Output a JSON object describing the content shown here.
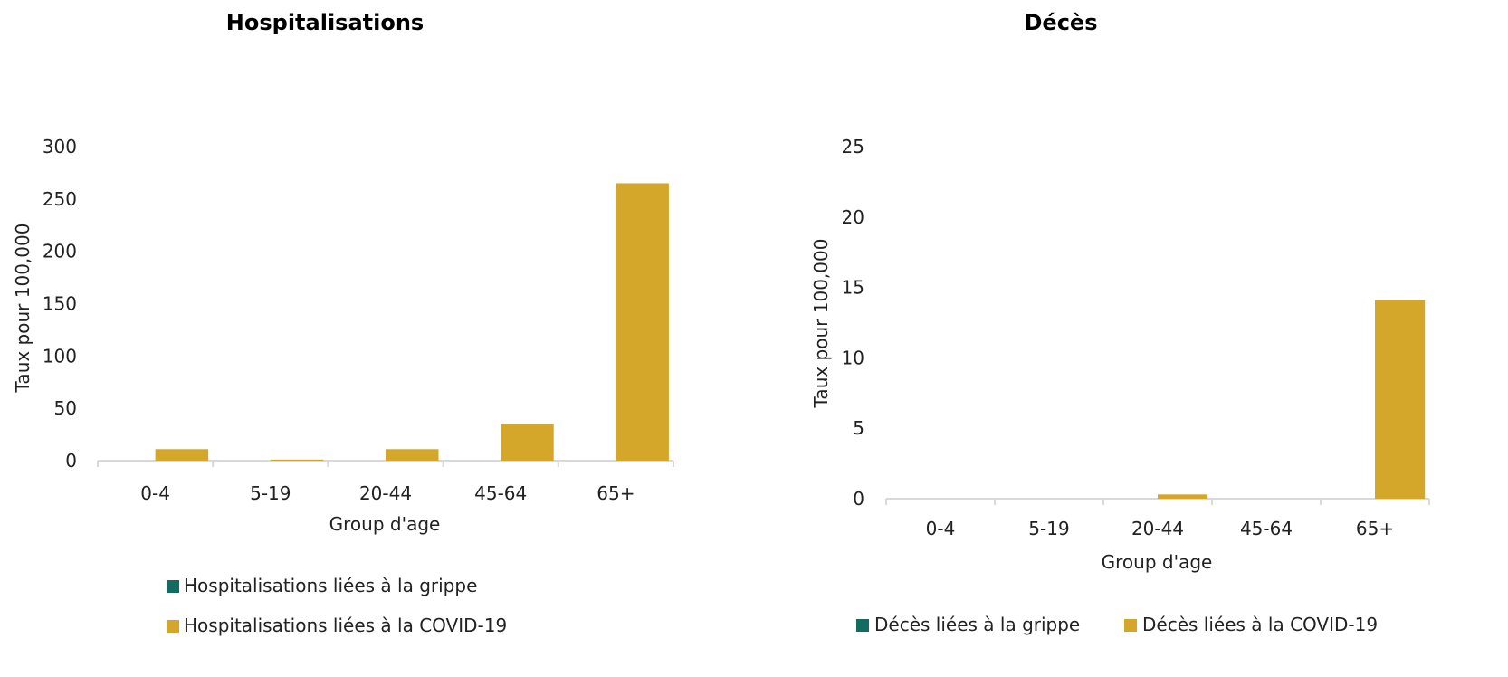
{
  "colors": {
    "flu": "#146b5f",
    "covid": "#d4a62a",
    "axis": "#d9d9d9"
  },
  "chart_data": [
    {
      "type": "bar",
      "title": "Hospitalisations",
      "xlabel": "Group d'age",
      "ylabel": "Taux pour 100,000",
      "categories": [
        "0-4",
        "5-19",
        "20-44",
        "45-64",
        "65+"
      ],
      "ylim": [
        0,
        300
      ],
      "yticks": [
        0,
        50,
        100,
        150,
        200,
        250,
        300
      ],
      "legend_position": "bottom",
      "series": [
        {
          "name": "Hospitalisations liées à la grippe",
          "values": [
            0,
            0,
            0,
            0,
            0
          ]
        },
        {
          "name": "Hospitalisations liées à la COVID-19",
          "values": [
            11,
            1,
            11,
            35,
            265
          ]
        }
      ]
    },
    {
      "type": "bar",
      "title": "Décès",
      "xlabel": "Group d'age",
      "ylabel": "Taux pour 100,000",
      "categories": [
        "0-4",
        "5-19",
        "20-44",
        "45-64",
        "65+"
      ],
      "ylim": [
        0,
        25
      ],
      "yticks": [
        0,
        5,
        10,
        15,
        20,
        25
      ],
      "legend_position": "bottom",
      "series": [
        {
          "name": "Décès liées à la grippe",
          "values": [
            0,
            0,
            0,
            0,
            0
          ]
        },
        {
          "name": "Décès liées à la COVID-19",
          "values": [
            0,
            0,
            0.3,
            0,
            14.1
          ]
        }
      ]
    }
  ]
}
